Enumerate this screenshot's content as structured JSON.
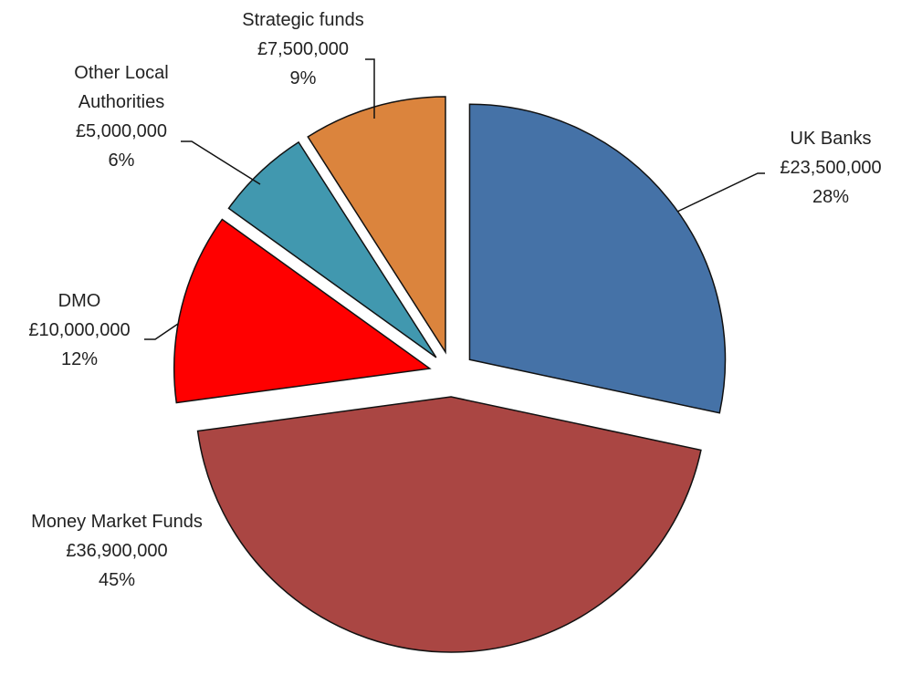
{
  "chart_data": {
    "type": "pie",
    "categories": [
      "UK Banks",
      "Money Market Funds",
      "DMO",
      "Other Local Authorities",
      "Strategic funds"
    ],
    "values": [
      23500000,
      36900000,
      10000000,
      5000000,
      7500000
    ],
    "value_labels": [
      "£23,500,000",
      "£36,900,000",
      "£10,000,000",
      "£5,000,000",
      "£7,500,000"
    ],
    "percent_labels": [
      "28%",
      "45%",
      "12%",
      "6%",
      "9%"
    ],
    "colors": [
      "#4572a7",
      "#aa4643",
      "#ff0000",
      "#4198af",
      "#db843d"
    ]
  }
}
